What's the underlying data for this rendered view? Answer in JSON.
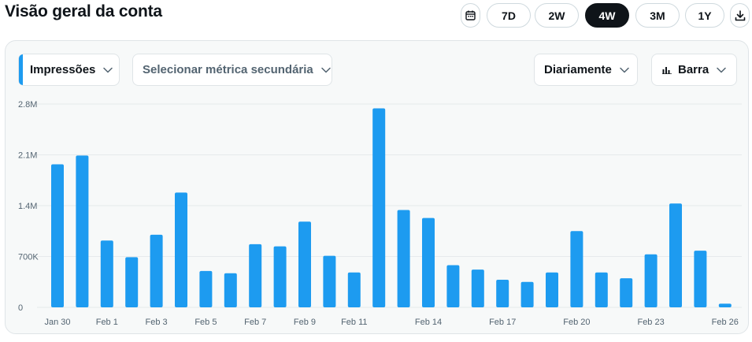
{
  "header": {
    "title": "Visão geral da conta",
    "calendar_icon": "calendar-icon",
    "download_icon": "download-icon",
    "periods": [
      {
        "label": "7D",
        "active": false
      },
      {
        "label": "2W",
        "active": false
      },
      {
        "label": "4W",
        "active": true
      },
      {
        "label": "3M",
        "active": false
      },
      {
        "label": "1Y",
        "active": false
      }
    ]
  },
  "controls": {
    "primary_metric": "Impressões",
    "secondary_metric_placeholder": "Selecionar métrica secundária",
    "interval": "Diariamente",
    "chart_type": "Barra",
    "chart_type_icon": "bar-chart-icon",
    "dropdown_icon": "chevron-down-icon"
  },
  "colors": {
    "accent": "#1d9bf0",
    "bar": "#1d9bf0",
    "active_pill": "#0f1419",
    "panel_bg": "#f7f9f9"
  },
  "chart_data": {
    "type": "bar",
    "title": "",
    "xlabel": "",
    "ylabel": "",
    "ylim": [
      0,
      2800000
    ],
    "yticks": [
      0,
      700000,
      1400000,
      2100000,
      2800000
    ],
    "ytick_labels": [
      "0",
      "700K",
      "1.4M",
      "2.1M",
      "2.8M"
    ],
    "grid": true,
    "categories": [
      "Jan 30",
      "Jan 31",
      "Feb 1",
      "Feb 2",
      "Feb 3",
      "Feb 4",
      "Feb 5",
      "Feb 6",
      "Feb 7",
      "Feb 8",
      "Feb 9",
      "Feb 10",
      "Feb 11",
      "Feb 12",
      "Feb 13",
      "Feb 14",
      "Feb 15",
      "Feb 16",
      "Feb 17",
      "Feb 18",
      "Feb 19",
      "Feb 20",
      "Feb 21",
      "Feb 22",
      "Feb 23",
      "Feb 24",
      "Feb 25",
      "Feb 26"
    ],
    "xtick_labels": [
      "Jan 30",
      "Feb 1",
      "Feb 3",
      "Feb 5",
      "Feb 7",
      "Feb 9",
      "Feb 11",
      "Feb 14",
      "Feb 17",
      "Feb 20",
      "Feb 23",
      "Feb 26"
    ],
    "values": [
      1970000,
      2090000,
      920000,
      690000,
      1000000,
      1580000,
      500000,
      470000,
      870000,
      840000,
      1180000,
      710000,
      480000,
      2740000,
      1340000,
      1230000,
      580000,
      520000,
      380000,
      350000,
      480000,
      1050000,
      480000,
      400000,
      730000,
      1430000,
      780000,
      50000
    ]
  }
}
